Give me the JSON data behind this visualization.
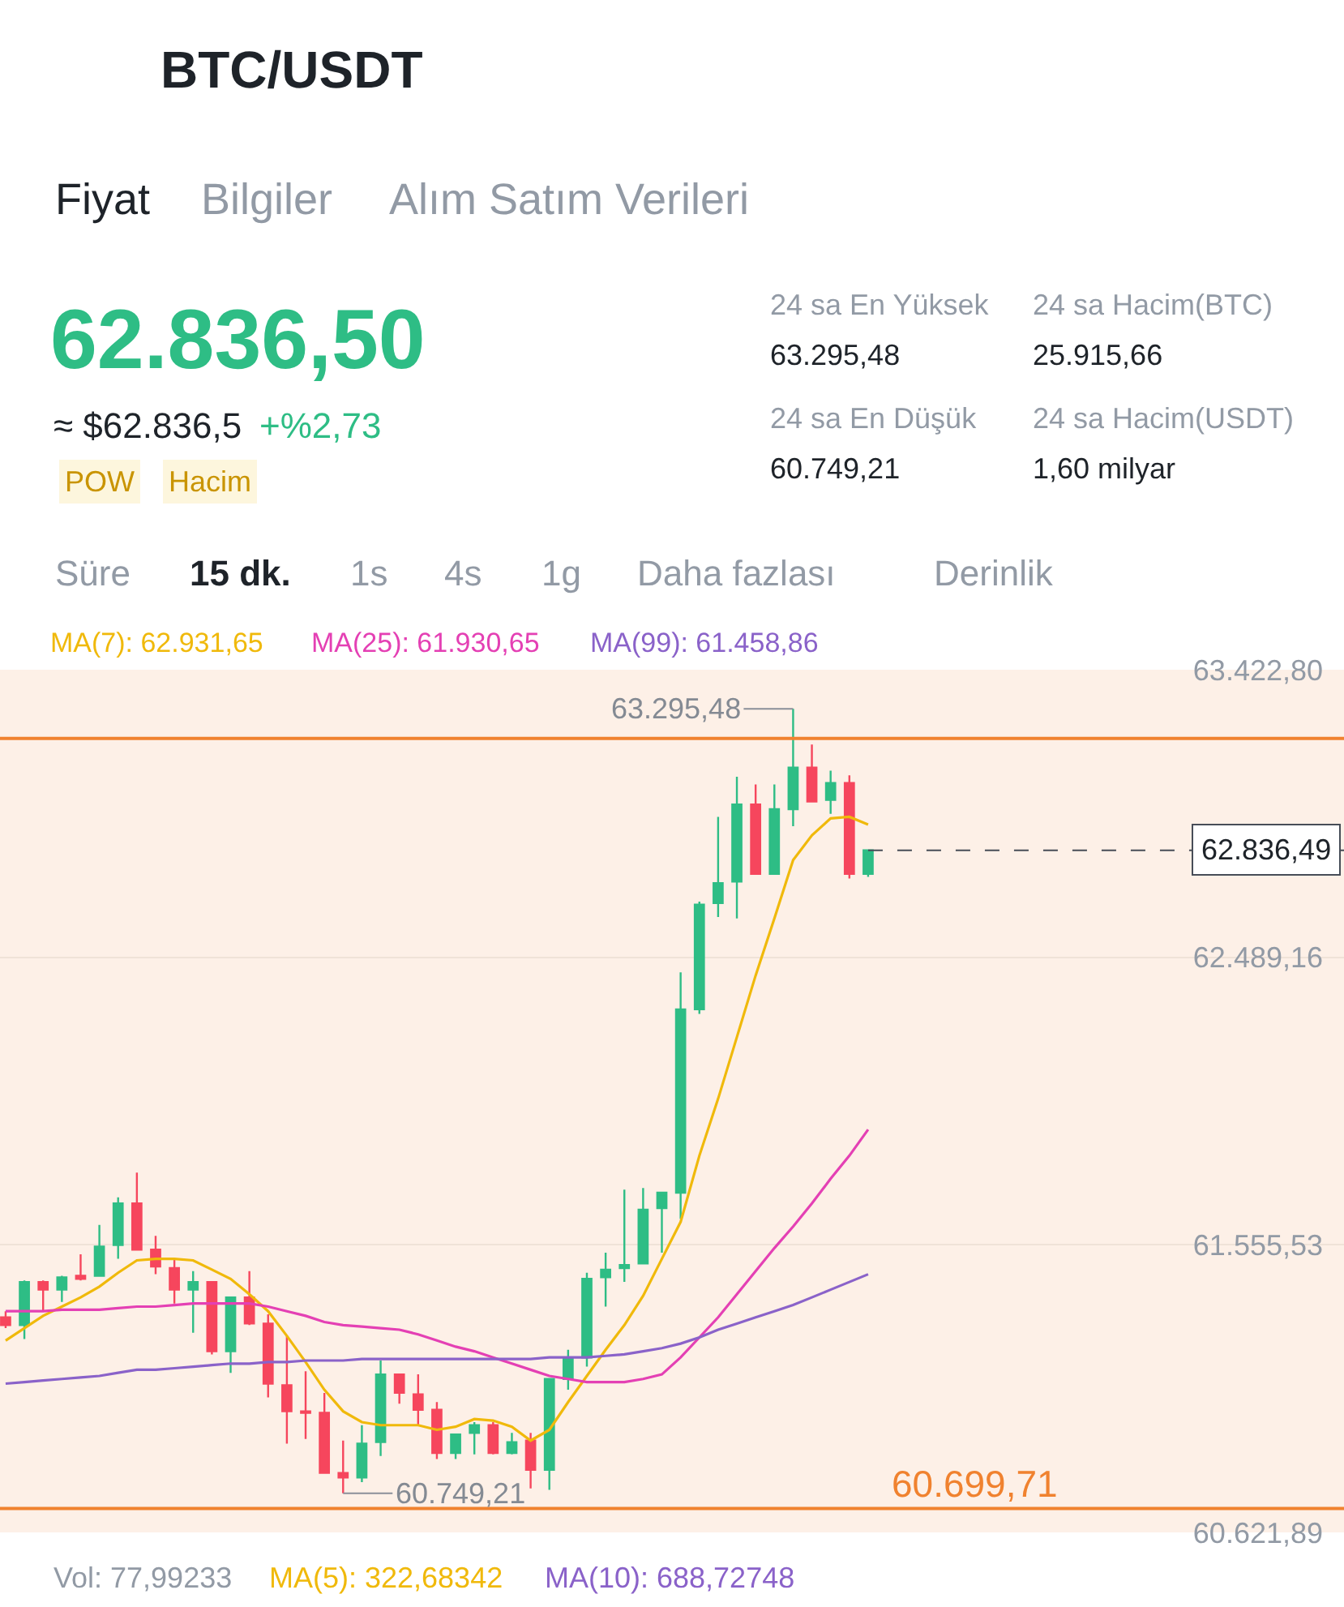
{
  "chart_data": {
    "type": "candlestick",
    "title": "BTC/USDT",
    "categories": [
      null,
      null,
      null,
      null,
      null,
      null,
      null,
      null,
      null,
      null,
      null,
      null,
      null,
      null,
      null,
      null,
      null,
      null,
      null,
      null,
      null,
      null,
      null,
      null,
      null,
      null,
      null,
      null,
      null,
      null,
      null,
      null,
      null,
      null,
      null,
      null,
      null,
      null,
      null,
      null,
      null,
      null,
      null,
      null,
      null,
      null,
      null
    ],
    "ohlc": [
      [
        61320,
        61340,
        61285,
        61295
      ],
      [
        61295,
        61440,
        61250,
        61435
      ],
      [
        61435,
        61440,
        61340,
        61410
      ],
      [
        61410,
        61455,
        61370,
        61450
      ],
      [
        61455,
        61525,
        61440,
        61445
      ],
      [
        61455,
        61620,
        61455,
        61550
      ],
      [
        61555,
        61710,
        61510,
        61690
      ],
      [
        61690,
        61790,
        61540,
        61540
      ],
      [
        61540,
        61585,
        61460,
        61485
      ],
      [
        61480,
        61510,
        61365,
        61410
      ],
      [
        61410,
        61470,
        61270,
        61435
      ],
      [
        61435,
        61435,
        61200,
        61210
      ],
      [
        61210,
        61385,
        61140,
        61385
      ],
      [
        61385,
        61470,
        61295,
        61300
      ],
      [
        61300,
        61330,
        61060,
        61105
      ],
      [
        61100,
        61260,
        60910,
        61015
      ],
      [
        61015,
        61145,
        60925,
        61010
      ],
      [
        61010,
        61075,
        60815,
        60815
      ],
      [
        60815,
        60920,
        60749.21,
        60800
      ],
      [
        60800,
        60970,
        60785,
        60910
      ],
      [
        60915,
        61180,
        60870,
        61135
      ],
      [
        61135,
        61135,
        61040,
        61075
      ],
      [
        61070,
        61135,
        60970,
        61020
      ],
      [
        61020,
        61045,
        60860,
        60880
      ],
      [
        60880,
        60940,
        60860,
        60940
      ],
      [
        60945,
        60980,
        60875,
        60970
      ],
      [
        60970,
        60980,
        60875,
        60880
      ],
      [
        60880,
        60945,
        60875,
        60915
      ],
      [
        60920,
        60945,
        60765,
        60825
      ],
      [
        60825,
        61120,
        60760,
        61120
      ],
      [
        61120,
        61215,
        61085,
        61185
      ],
      [
        61190,
        61465,
        61160,
        61445
      ],
      [
        61450,
        61530,
        61355,
        61475
      ],
      [
        61480,
        61735,
        61435,
        61490
      ],
      [
        61495,
        61740,
        61495,
        61670
      ],
      [
        61675,
        61725,
        61530,
        61725
      ],
      [
        61725,
        62440,
        61640,
        62320
      ],
      [
        62320,
        62670,
        62305,
        62660
      ],
      [
        62665,
        62945,
        62620,
        62730
      ],
      [
        62735,
        63075,
        62615,
        62985
      ],
      [
        62985,
        63050,
        62760,
        62760
      ],
      [
        62760,
        63050,
        62760,
        62970
      ],
      [
        62970,
        63295.48,
        62915,
        63105
      ],
      [
        63105,
        63180,
        62995,
        62995
      ],
      [
        63000,
        63095,
        62955,
        63055
      ],
      [
        63055,
        63080,
        62745,
        62760
      ],
      [
        62760,
        62840,
        62750,
        62836.49
      ]
    ],
    "colors": [
      "#f6465d",
      "#2ebd85",
      "#f6465d",
      "#2ebd85",
      "#f6465d",
      "#2ebd85",
      "#2ebd85",
      "#f6465d",
      "#f6465d",
      "#f6465d",
      "#2ebd85",
      "#f6465d",
      "#2ebd85",
      "#f6465d",
      "#f6465d",
      "#f6465d",
      "#f6465d",
      "#f6465d",
      "#f6465d",
      "#2ebd85",
      "#2ebd85",
      "#f6465d",
      "#f6465d",
      "#f6465d",
      "#2ebd85",
      "#2ebd85",
      "#f6465d",
      "#2ebd85",
      "#f6465d",
      "#2ebd85",
      "#2ebd85",
      "#2ebd85",
      "#2ebd85",
      "#2ebd85",
      "#2ebd85",
      "#2ebd85",
      "#2ebd85",
      "#2ebd85",
      "#2ebd85",
      "#2ebd85",
      "#f6465d",
      "#2ebd85",
      "#2ebd85",
      "#f6465d",
      "#2ebd85",
      "#f6465d",
      "#2ebd85"
    ],
    "series": [
      {
        "name": "MA(7): 62.931,65",
        "type": "line",
        "color": "#f0b90b",
        "values": [
          61245,
          61285,
          61325,
          61355,
          61385,
          61420,
          61465,
          61505,
          61510,
          61510,
          61505,
          61475,
          61445,
          61395,
          61340,
          61260,
          61175,
          61085,
          61015,
          60980,
          60970,
          60970,
          60970,
          60955,
          60965,
          60990,
          60985,
          60965,
          60920,
          60955,
          61045,
          61130,
          61215,
          61295,
          61390,
          61510,
          61630,
          61845,
          62030,
          62230,
          62430,
          62615,
          62805,
          62885,
          62940,
          62945,
          62920
        ]
      },
      {
        "name": "MA(25): 61.930,65",
        "type": "line",
        "color": "#e440b4",
        "values": [
          61340,
          61340,
          61340,
          61345,
          61345,
          61345,
          61350,
          61355,
          61355,
          61360,
          61365,
          61365,
          61365,
          61365,
          61355,
          61340,
          61325,
          61305,
          61295,
          61290,
          61285,
          61280,
          61265,
          61245,
          61225,
          61210,
          61190,
          61170,
          61150,
          61130,
          61120,
          61110,
          61110,
          61110,
          61120,
          61135,
          61190,
          61255,
          61320,
          61395,
          61470,
          61545,
          61615,
          61690,
          61770,
          61845,
          61930
        ]
      },
      {
        "name": "MA(99): 61.458,86",
        "type": "line",
        "color": "#8a62c9",
        "values": [
          61105,
          61110,
          61115,
          61120,
          61125,
          61130,
          61140,
          61150,
          61150,
          61155,
          61160,
          61165,
          61170,
          61170,
          61175,
          61175,
          61180,
          61180,
          61180,
          61185,
          61185,
          61185,
          61185,
          61185,
          61185,
          61185,
          61185,
          61185,
          61185,
          61190,
          61190,
          61190,
          61195,
          61200,
          61210,
          61220,
          61235,
          61255,
          61280,
          61300,
          61320,
          61340,
          61360,
          61385,
          61410,
          61435,
          61460
        ]
      }
    ],
    "ylim": [
      60621.89,
      63422.8
    ],
    "yticks": [
      {
        "value": 63422.8,
        "label": "63.422,80"
      },
      {
        "value": 62489.16,
        "label": "62.489,16"
      },
      {
        "value": 61555.53,
        "label": "61.555,53"
      },
      {
        "value": 60621.89,
        "label": "60.621,89"
      }
    ],
    "grid": "y",
    "tick_labels": "y",
    "ref_lines": [
      {
        "axis": "y",
        "value": 63200,
        "color": "#f0822f"
      },
      {
        "axis": "y",
        "value": 62836.49,
        "label": "62.836,49",
        "color": "#474d57",
        "line_style": "dashed"
      },
      {
        "axis": "y",
        "value": 60699.71,
        "label": "60.699,71",
        "color": "#f0822f"
      }
    ],
    "annotations": [
      "Fiyat",
      "Bilgiler",
      "Alım Satım Verileri",
      "62.836,50",
      "≈ $62.836,5",
      "+%2,73",
      "POW",
      "Hacim",
      "24 sa En Yüksek",
      "63.295,48",
      "24 sa Hacim(BTC)",
      "25.915,66",
      "24 sa En Düşük",
      "60.749,21",
      "24 sa Hacim(USDT)",
      "1,60 milyar",
      "Süre",
      "15 dk.",
      "1s",
      "4s",
      "1g",
      "Daha fazlası",
      "Derinlik",
      "Vol: 77,99233",
      "MA(5): 322,68342",
      "MA(10): 688,72748",
      "63.295,48",
      "60.749,21"
    ]
  }
}
